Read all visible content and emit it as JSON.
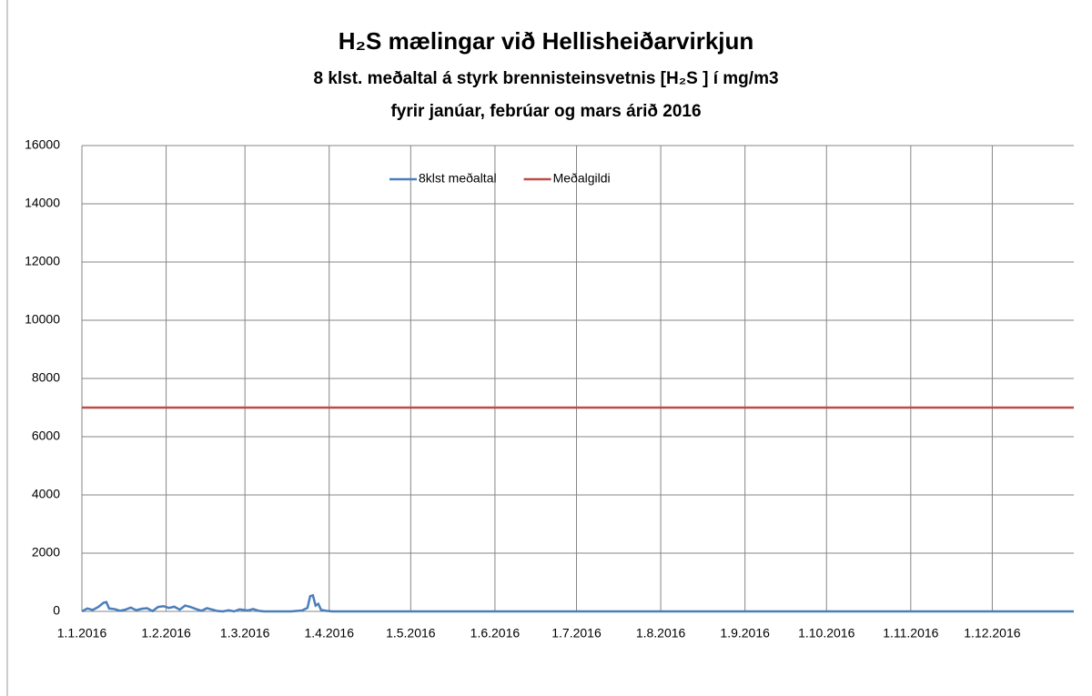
{
  "chart_data": {
    "type": "line",
    "title": "H₂S mælingar við Hellisheiðarvirkjun",
    "subtitle": [
      "8 klst. meðaltal á styrk brennisteinsvetnis [H₂S ] í mg/m3",
      "fyrir janúar, febrúar og mars árið 2016"
    ],
    "xlim": [
      "2016-01-01",
      "2016-12-31"
    ],
    "xticks": [
      {
        "value": "2016-01-01",
        "label": "1.1.2016"
      },
      {
        "value": "2016-02-01",
        "label": "1.2.2016"
      },
      {
        "value": "2016-03-01",
        "label": "1.3.2016"
      },
      {
        "value": "2016-04-01",
        "label": "1.4.2016"
      },
      {
        "value": "2016-05-01",
        "label": "1.5.2016"
      },
      {
        "value": "2016-06-01",
        "label": "1.6.2016"
      },
      {
        "value": "2016-07-01",
        "label": "1.7.2016"
      },
      {
        "value": "2016-08-01",
        "label": "1.8.2016"
      },
      {
        "value": "2016-09-01",
        "label": "1.9.2016"
      },
      {
        "value": "2016-10-01",
        "label": "1.10.2016"
      },
      {
        "value": "2016-11-01",
        "label": "1.11.2016"
      },
      {
        "value": "2016-12-01",
        "label": "1.12.2016"
      }
    ],
    "ylim": [
      0,
      16000
    ],
    "yticks": [
      0,
      2000,
      4000,
      6000,
      8000,
      10000,
      12000,
      14000,
      16000
    ],
    "grid": true,
    "legend": "top",
    "series": [
      {
        "name": "8klst meðaltal",
        "color": "#4a7ebb",
        "x": [
          "2016-01-01",
          "2016-01-03",
          "2016-01-05",
          "2016-01-07",
          "2016-01-09",
          "2016-01-10",
          "2016-01-11",
          "2016-01-13",
          "2016-01-15",
          "2016-01-17",
          "2016-01-19",
          "2016-01-21",
          "2016-01-23",
          "2016-01-25",
          "2016-01-27",
          "2016-01-29",
          "2016-01-31",
          "2016-02-02",
          "2016-02-04",
          "2016-02-06",
          "2016-02-08",
          "2016-02-10",
          "2016-02-12",
          "2016-02-14",
          "2016-02-16",
          "2016-02-18",
          "2016-02-20",
          "2016-02-22",
          "2016-02-24",
          "2016-02-26",
          "2016-02-28",
          "2016-03-02",
          "2016-03-04",
          "2016-03-06",
          "2016-03-08",
          "2016-03-12",
          "2016-03-18",
          "2016-03-22",
          "2016-03-24",
          "2016-03-25",
          "2016-03-26",
          "2016-03-27",
          "2016-03-28",
          "2016-03-29",
          "2016-03-31",
          "2016-04-02",
          "2016-12-31"
        ],
        "values": [
          0,
          100,
          50,
          150,
          300,
          320,
          100,
          80,
          20,
          60,
          130,
          40,
          90,
          110,
          10,
          150,
          180,
          120,
          160,
          60,
          200,
          150,
          80,
          20,
          110,
          60,
          10,
          0,
          40,
          0,
          70,
          30,
          80,
          20,
          0,
          0,
          0,
          30,
          120,
          520,
          550,
          200,
          260,
          50,
          20,
          0,
          0
        ]
      },
      {
        "name": "Meðalgildi",
        "color": "#be4b48",
        "x": [
          "2016-01-01",
          "2016-12-31"
        ],
        "values": [
          7000,
          7000
        ]
      }
    ]
  }
}
